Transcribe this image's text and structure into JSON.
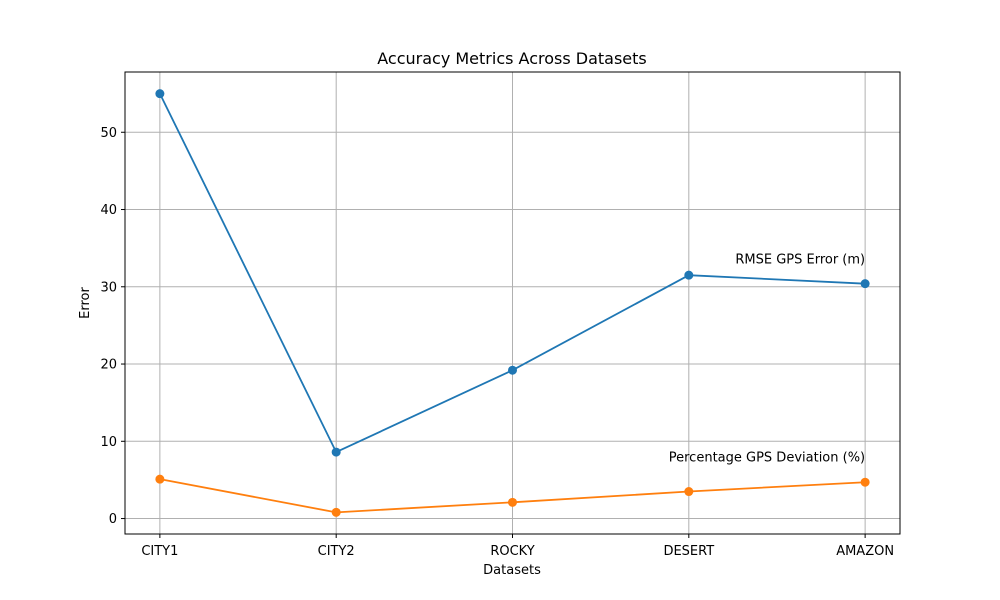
{
  "chart_data": {
    "type": "line",
    "title": "Accuracy Metrics Across Datasets",
    "xlabel": "Datasets",
    "ylabel": "Error",
    "categories": [
      "CITY1",
      "CITY2",
      "ROCKY",
      "DESERT",
      "AMAZON"
    ],
    "ylim": [
      -2,
      57.8
    ],
    "yticks": [
      0,
      10,
      20,
      30,
      40,
      50
    ],
    "grid": true,
    "series": [
      {
        "values": [
          55.0,
          8.6,
          19.2,
          31.5,
          30.4
        ],
        "color": "#1f77b4"
      },
      {
        "values": [
          5.1,
          0.8,
          2.1,
          3.5,
          4.7
        ],
        "color": "#ff7f0e"
      }
    ],
    "annotations": [
      {
        "text": "RMSE GPS Error (m)",
        "x": "AMAZON",
        "y": 33
      },
      {
        "text": "Percentage GPS Deviation (%)",
        "x": "AMAZON",
        "y": 7.4
      }
    ]
  }
}
